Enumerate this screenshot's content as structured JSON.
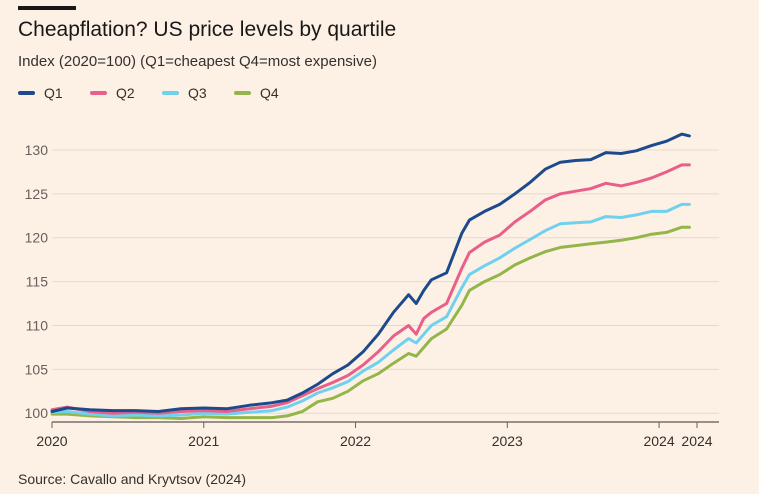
{
  "chart_data": {
    "type": "line",
    "title": "Cheapflation? US price levels by quartile",
    "subtitle": "Index (2020=100) (Q1=cheapest Q4=most expensive)",
    "source": "Source: Cavallo and Kryvtsov (2024)",
    "xlabel": "",
    "ylabel": "",
    "ylim": [
      99,
      132.5
    ],
    "xlim": [
      2020.0,
      2024.25
    ],
    "y_ticks": [
      100,
      105,
      110,
      115,
      120,
      125,
      130
    ],
    "x_ticks": [
      {
        "value": 2020.0,
        "label": "2020"
      },
      {
        "value": 2021.0,
        "label": "2021"
      },
      {
        "value": 2022.0,
        "label": "2022"
      },
      {
        "value": 2023.0,
        "label": "2023"
      },
      {
        "value": 2024.0,
        "label": "2024"
      },
      {
        "value": 2024.25,
        "label": "2024"
      }
    ],
    "grid": true,
    "legend": "top-left",
    "series": [
      {
        "name": "Q1",
        "color": "#1c4a8c",
        "x": [
          2020.0,
          2020.1,
          2020.25,
          2020.4,
          2020.55,
          2020.7,
          2020.85,
          2021.0,
          2021.15,
          2021.3,
          2021.45,
          2021.55,
          2021.65,
          2021.75,
          2021.85,
          2021.95,
          2022.05,
          2022.15,
          2022.25,
          2022.35,
          2022.4,
          2022.45,
          2022.5,
          2022.6,
          2022.7,
          2022.75,
          2022.85,
          2022.95,
          2023.05,
          2023.15,
          2023.25,
          2023.35,
          2023.45,
          2023.55,
          2023.65,
          2023.75,
          2023.85,
          2023.95,
          2024.05,
          2024.15,
          2024.2
        ],
        "values": [
          100.2,
          100.6,
          100.4,
          100.3,
          100.3,
          100.2,
          100.5,
          100.6,
          100.5,
          100.9,
          101.2,
          101.5,
          102.3,
          103.3,
          104.5,
          105.5,
          107.0,
          109.0,
          111.5,
          113.5,
          112.5,
          114.0,
          115.2,
          116.0,
          120.5,
          122.0,
          123.0,
          123.8,
          125.0,
          126.3,
          127.8,
          128.6,
          128.8,
          128.9,
          129.7,
          129.6,
          129.9,
          130.5,
          131.0,
          131.8,
          131.6
        ]
      },
      {
        "name": "Q2",
        "color": "#e8608a",
        "x": [
          2020.0,
          2020.1,
          2020.25,
          2020.4,
          2020.55,
          2020.7,
          2020.85,
          2021.0,
          2021.15,
          2021.3,
          2021.45,
          2021.55,
          2021.65,
          2021.75,
          2021.85,
          2021.95,
          2022.05,
          2022.15,
          2022.25,
          2022.35,
          2022.4,
          2022.45,
          2022.5,
          2022.6,
          2022.7,
          2022.75,
          2022.85,
          2022.95,
          2023.05,
          2023.15,
          2023.25,
          2023.35,
          2023.45,
          2023.55,
          2023.65,
          2023.75,
          2023.85,
          2023.95,
          2024.05,
          2024.15,
          2024.2
        ],
        "values": [
          100.4,
          100.7,
          100.2,
          100.0,
          100.1,
          100.0,
          100.2,
          100.3,
          100.2,
          100.5,
          100.8,
          101.2,
          102.0,
          102.8,
          103.5,
          104.3,
          105.5,
          107.0,
          108.8,
          110.0,
          109.0,
          110.8,
          111.5,
          112.5,
          116.5,
          118.3,
          119.5,
          120.3,
          121.8,
          123.0,
          124.3,
          125.0,
          125.3,
          125.6,
          126.2,
          125.9,
          126.3,
          126.8,
          127.5,
          128.3,
          128.3
        ]
      },
      {
        "name": "Q3",
        "color": "#6fd1ee",
        "x": [
          2020.0,
          2020.1,
          2020.25,
          2020.4,
          2020.55,
          2020.7,
          2020.85,
          2021.0,
          2021.15,
          2021.3,
          2021.45,
          2021.55,
          2021.65,
          2021.75,
          2021.85,
          2021.95,
          2022.05,
          2022.15,
          2022.25,
          2022.35,
          2022.4,
          2022.45,
          2022.5,
          2022.6,
          2022.7,
          2022.75,
          2022.85,
          2022.95,
          2023.05,
          2023.15,
          2023.25,
          2023.35,
          2023.45,
          2023.55,
          2023.65,
          2023.75,
          2023.85,
          2023.95,
          2024.05,
          2024.15,
          2024.2
        ],
        "values": [
          100.1,
          100.2,
          99.9,
          99.7,
          99.8,
          99.7,
          99.8,
          100.0,
          99.9,
          100.1,
          100.3,
          100.7,
          101.4,
          102.3,
          102.9,
          103.6,
          104.8,
          105.8,
          107.2,
          108.5,
          108.0,
          109.0,
          110.0,
          111.0,
          114.3,
          115.8,
          116.8,
          117.7,
          118.8,
          119.8,
          120.8,
          121.6,
          121.7,
          121.8,
          122.4,
          122.3,
          122.6,
          123.0,
          123.0,
          123.8,
          123.8
        ]
      },
      {
        "name": "Q4",
        "color": "#94b54a",
        "x": [
          2020.0,
          2020.1,
          2020.25,
          2020.4,
          2020.55,
          2020.7,
          2020.85,
          2021.0,
          2021.15,
          2021.3,
          2021.45,
          2021.55,
          2021.65,
          2021.75,
          2021.85,
          2021.95,
          2022.05,
          2022.15,
          2022.25,
          2022.35,
          2022.4,
          2022.45,
          2022.5,
          2022.6,
          2022.7,
          2022.75,
          2022.85,
          2022.95,
          2023.05,
          2023.15,
          2023.25,
          2023.35,
          2023.45,
          2023.55,
          2023.65,
          2023.75,
          2023.85,
          2023.95,
          2024.05,
          2024.15,
          2024.2
        ],
        "values": [
          99.9,
          99.9,
          99.7,
          99.6,
          99.5,
          99.5,
          99.4,
          99.6,
          99.5,
          99.5,
          99.5,
          99.7,
          100.2,
          101.3,
          101.7,
          102.5,
          103.7,
          104.5,
          105.7,
          106.8,
          106.5,
          107.5,
          108.5,
          109.6,
          112.3,
          114.0,
          115.0,
          115.8,
          116.9,
          117.7,
          118.4,
          118.9,
          119.1,
          119.3,
          119.5,
          119.7,
          120.0,
          120.4,
          120.6,
          121.2,
          121.2
        ]
      }
    ]
  }
}
